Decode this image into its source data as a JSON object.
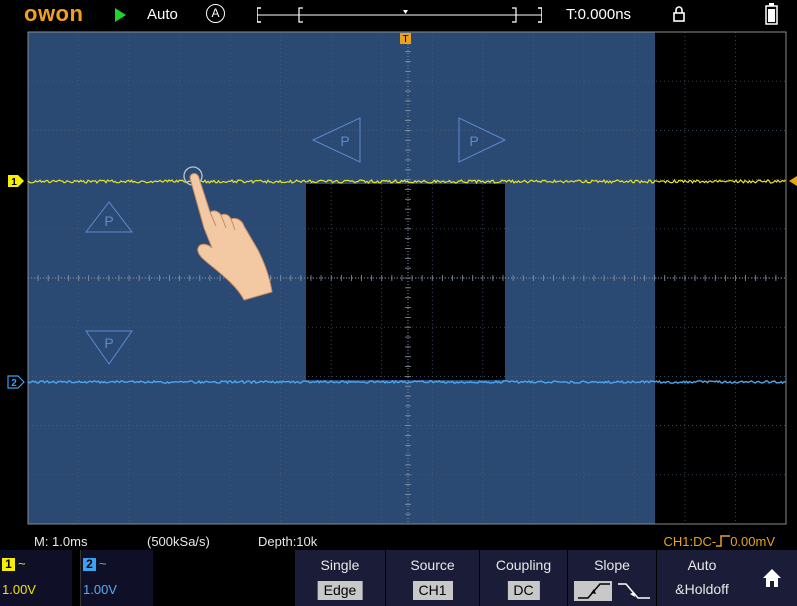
{
  "topbar": {
    "logo": "OWON",
    "run_state": "play-icon",
    "trigger_mode": "Auto",
    "auto_symbol": "A",
    "trigger_time": "T:0.000ns",
    "lock_icon": "lock-icon",
    "battery_icon": "battery-icon"
  },
  "screen": {
    "trigger_marker": "T",
    "ch1_marker": "1",
    "ch2_marker": "2",
    "gesture_markers": [
      "P",
      "P",
      "P",
      "P"
    ]
  },
  "info": {
    "timebase": "M: 1.0ms",
    "sample_rate": "(500kSa/s)",
    "depth": "Depth:10k",
    "trigger": "CH1:DC-_̅ 0.00mV"
  },
  "channels": [
    {
      "tag": "1",
      "coupling": "~",
      "volts": "1.00V",
      "color": "#f7f000",
      "text_color": "#f2e20a"
    },
    {
      "tag": "2",
      "coupling": "~",
      "volts": "1.00V",
      "color": "#3aa2f0",
      "text_color": "#58acf0"
    }
  ],
  "menu": {
    "type_top": "Single",
    "type_val": "Edge",
    "source_top": "Source",
    "source_val": "CH1",
    "coupling_top": "Coupling",
    "coupling_val": "DC",
    "slope_top": "Slope",
    "auto_top": "Auto",
    "auto_val": "&Holdoff",
    "home_icon": "home-icon"
  },
  "colors": {
    "logo": "#f1a020",
    "ch1": "#f7f000",
    "ch2": "#3aa2f0",
    "trigger_info": "#e9a21c",
    "overlay": "#2a4a74"
  }
}
